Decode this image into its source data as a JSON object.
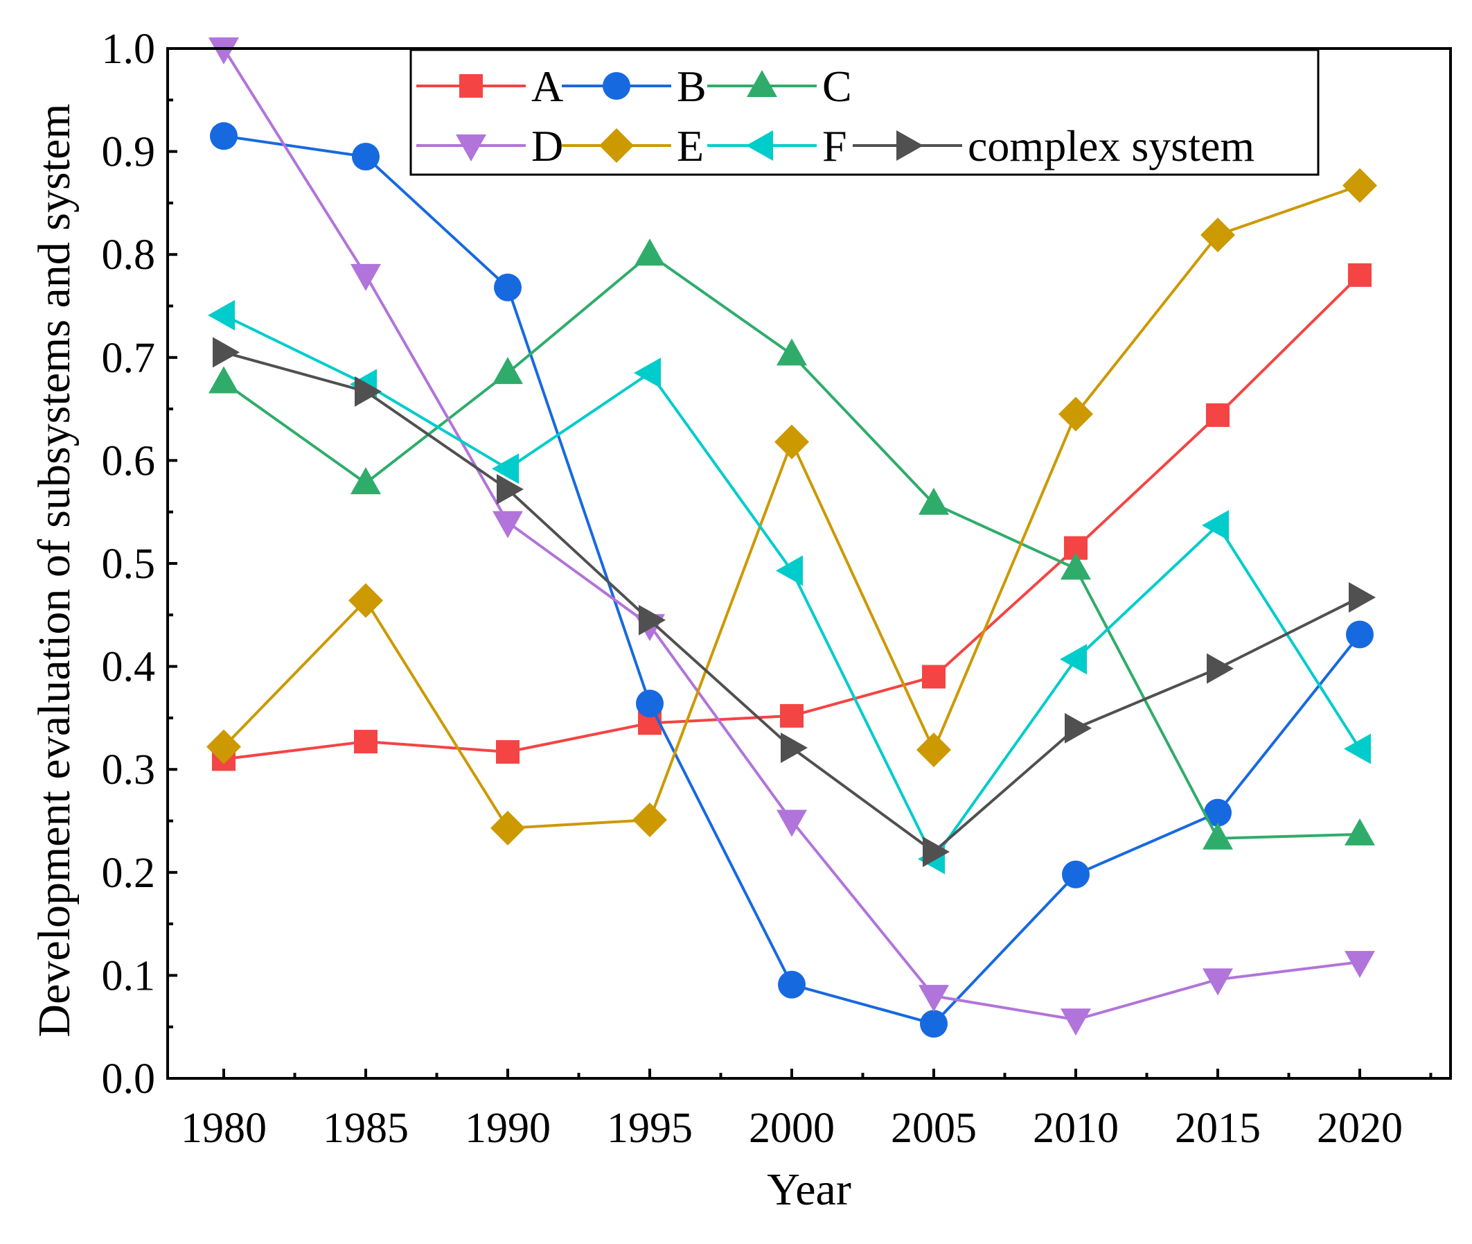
{
  "chart_data": {
    "type": "line",
    "title": "",
    "xlabel": "Year",
    "ylabel": "Development evaluation of subsystems and system",
    "x": [
      1980,
      1985,
      1990,
      1995,
      2000,
      2005,
      2010,
      2015,
      2020
    ],
    "xlim": [
      1980,
      2020
    ],
    "ylim": [
      0.0,
      1.0
    ],
    "yticks": [
      "0.0",
      "0.1",
      "0.2",
      "0.3",
      "0.4",
      "0.5",
      "0.6",
      "0.7",
      "0.8",
      "0.9",
      "1.0"
    ],
    "xticks": [
      "1980",
      "1985",
      "1990",
      "1995",
      "2000",
      "2005",
      "2010",
      "2015",
      "2020"
    ],
    "grid": false,
    "legend_position": "top",
    "series": [
      {
        "name": "A",
        "color": "#f44444",
        "marker": "square",
        "values": [
          0.31,
          0.327,
          0.317,
          0.345,
          0.352,
          0.39,
          0.515,
          0.644,
          0.78
        ]
      },
      {
        "name": "B",
        "color": "#1769e0",
        "marker": "circle",
        "values": [
          0.915,
          0.895,
          0.768,
          0.364,
          0.091,
          0.053,
          0.198,
          0.258,
          0.431
        ]
      },
      {
        "name": "C",
        "color": "#2fac6a",
        "marker": "triangle-up",
        "values": [
          0.676,
          0.578,
          0.685,
          0.8,
          0.703,
          0.558,
          0.495,
          0.233,
          0.237
        ]
      },
      {
        "name": "D",
        "color": "#b174da",
        "marker": "triangle-down",
        "values": [
          1.0,
          0.78,
          0.54,
          0.44,
          0.25,
          0.08,
          0.057,
          0.096,
          0.113
        ]
      },
      {
        "name": "E",
        "color": "#cc9900",
        "marker": "diamond",
        "values": [
          0.322,
          0.464,
          0.243,
          0.251,
          0.618,
          0.319,
          0.645,
          0.819,
          0.867
        ]
      },
      {
        "name": "F",
        "color": "#00cccc",
        "marker": "triangle-left",
        "values": [
          0.741,
          0.674,
          0.592,
          0.685,
          0.493,
          0.213,
          0.407,
          0.537,
          0.32
        ]
      },
      {
        "name": "complex system",
        "color": "#505050",
        "marker": "triangle-right",
        "values": [
          0.705,
          0.667,
          0.572,
          0.445,
          0.321,
          0.22,
          0.34,
          0.398,
          0.467
        ]
      }
    ]
  }
}
